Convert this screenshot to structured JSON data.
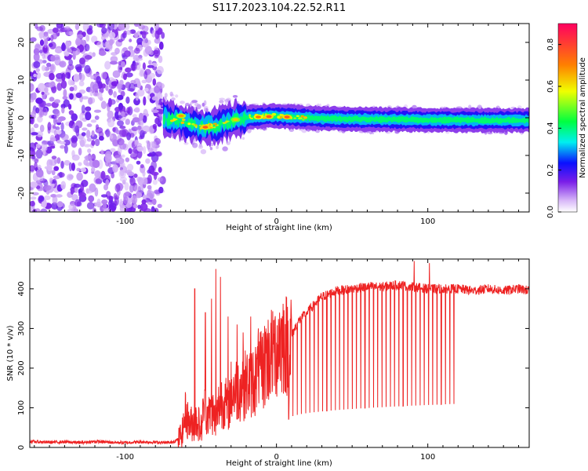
{
  "title": "S117.2023.104.22.52.R11",
  "chart_data": [
    {
      "type": "heatmap",
      "title": "S117.2023.104.22.52.R11",
      "xlabel": "Height of straight line (km)",
      "ylabel": "Frequency (Hz)",
      "xlim": [
        -163,
        167
      ],
      "ylim": [
        -25,
        25
      ],
      "x_ticks": [
        -100,
        0,
        100
      ],
      "y_ticks": [
        -20,
        -10,
        0,
        10,
        20
      ],
      "grid": false,
      "colorbar": {
        "label": "Normalized spectral amplitude",
        "range": [
          0.0,
          0.9
        ],
        "ticks": [
          0.0,
          0.2,
          0.4,
          0.6,
          0.8
        ],
        "tick_labels": [
          "0.0",
          "0.2",
          "0.4",
          "0.6",
          "0.8"
        ],
        "colormap": [
          "#ffffff",
          "#d8b8f8",
          "#7a1ee8",
          "#0a10ff",
          "#00f0f0",
          "#00ff40",
          "#f0ff00",
          "#ff8000",
          "#ff0060"
        ]
      },
      "features": [
        {
          "x_range": [
            -163,
            -75
          ],
          "frequency_range": [
            -25,
            25
          ],
          "amplitude": 0.12,
          "description_shown": "broadband noise"
        },
        {
          "x_range": [
            -75,
            167
          ],
          "frequency_center": 0,
          "amplitude": 0.3,
          "ridge": true
        }
      ],
      "ridge_center_hz": [
        {
          "x": -75,
          "y": 0
        },
        {
          "x": -62,
          "y": -1
        },
        {
          "x": -48,
          "y": -2.5
        },
        {
          "x": -38,
          "y": -2
        },
        {
          "x": -28,
          "y": -0.5
        },
        {
          "x": -15,
          "y": 0.2
        },
        {
          "x": -5,
          "y": 0.5
        },
        {
          "x": 5,
          "y": 0.3
        },
        {
          "x": 30,
          "y": -0.2
        },
        {
          "x": 60,
          "y": -0.4
        },
        {
          "x": 100,
          "y": -0.6
        },
        {
          "x": 167,
          "y": -0.7
        }
      ],
      "hotspots": [
        {
          "x": -63,
          "y": 0.5,
          "amplitude": 0.75
        },
        {
          "x": -47,
          "y": -2.5,
          "amplitude": 0.85
        },
        {
          "x": -27,
          "y": -0.5,
          "amplitude": 0.7
        },
        {
          "x": -12,
          "y": 0.2,
          "amplitude": 0.8
        },
        {
          "x": -5,
          "y": 0.3,
          "amplitude": 0.85
        },
        {
          "x": 7,
          "y": 0.2,
          "amplitude": 0.85
        }
      ]
    },
    {
      "type": "line",
      "xlabel": "Height of straight line (km)",
      "ylabel": "SNR (10 * v/v)",
      "xlim": [
        -163,
        167
      ],
      "ylim": [
        0,
        475
      ],
      "x_ticks": [
        -100,
        0,
        100
      ],
      "y_ticks": [
        0,
        100,
        200,
        300,
        400
      ],
      "grid": false,
      "series": [
        {
          "color": "#ee2222",
          "x": [
            -163,
            -150,
            -140,
            -130,
            -120,
            -110,
            -100,
            -90,
            -80,
            -70,
            -65,
            -62,
            -60,
            -58,
            -55,
            -52,
            -50,
            -48,
            -45,
            -42,
            -40,
            -38,
            -35,
            -32,
            -30,
            -25,
            -20,
            -15,
            -10,
            -5,
            0,
            5,
            8,
            10,
            12,
            15,
            20,
            25,
            30,
            40,
            50,
            60,
            70,
            80,
            90,
            100,
            110,
            120,
            130,
            140,
            150,
            160,
            167
          ],
          "y": [
            15,
            13,
            14,
            12,
            15,
            13,
            12,
            14,
            13,
            12,
            20,
            40,
            90,
            60,
            60,
            70,
            40,
            100,
            80,
            90,
            60,
            110,
            120,
            100,
            140,
            150,
            160,
            170,
            190,
            230,
            250,
            270,
            250,
            280,
            300,
            320,
            340,
            360,
            380,
            395,
            400,
            405,
            405,
            410,
            405,
            400,
            400,
            400,
            395,
            400,
            395,
            400,
            395
          ]
        }
      ],
      "spikes": [
        {
          "x": -54,
          "y": 400
        },
        {
          "x": -47,
          "y": 340
        },
        {
          "x": -43,
          "y": 375
        },
        {
          "x": -40,
          "y": 450
        },
        {
          "x": -37,
          "y": 430
        },
        {
          "x": -32,
          "y": 330
        },
        {
          "x": -26,
          "y": 310
        },
        {
          "x": -22,
          "y": 290
        },
        {
          "x": -17,
          "y": 330
        },
        {
          "x": -12,
          "y": 300
        },
        {
          "x": -7,
          "y": 300
        },
        {
          "x": -2,
          "y": 320
        },
        {
          "x": 2,
          "y": 340
        },
        {
          "x": 91,
          "y": 470
        },
        {
          "x": 101,
          "y": 465
        }
      ],
      "dropouts": {
        "x_range": [
          8,
          120
        ],
        "period_km": 2.8,
        "bottom": {
          "start": 70,
          "end": 110
        }
      }
    }
  ]
}
